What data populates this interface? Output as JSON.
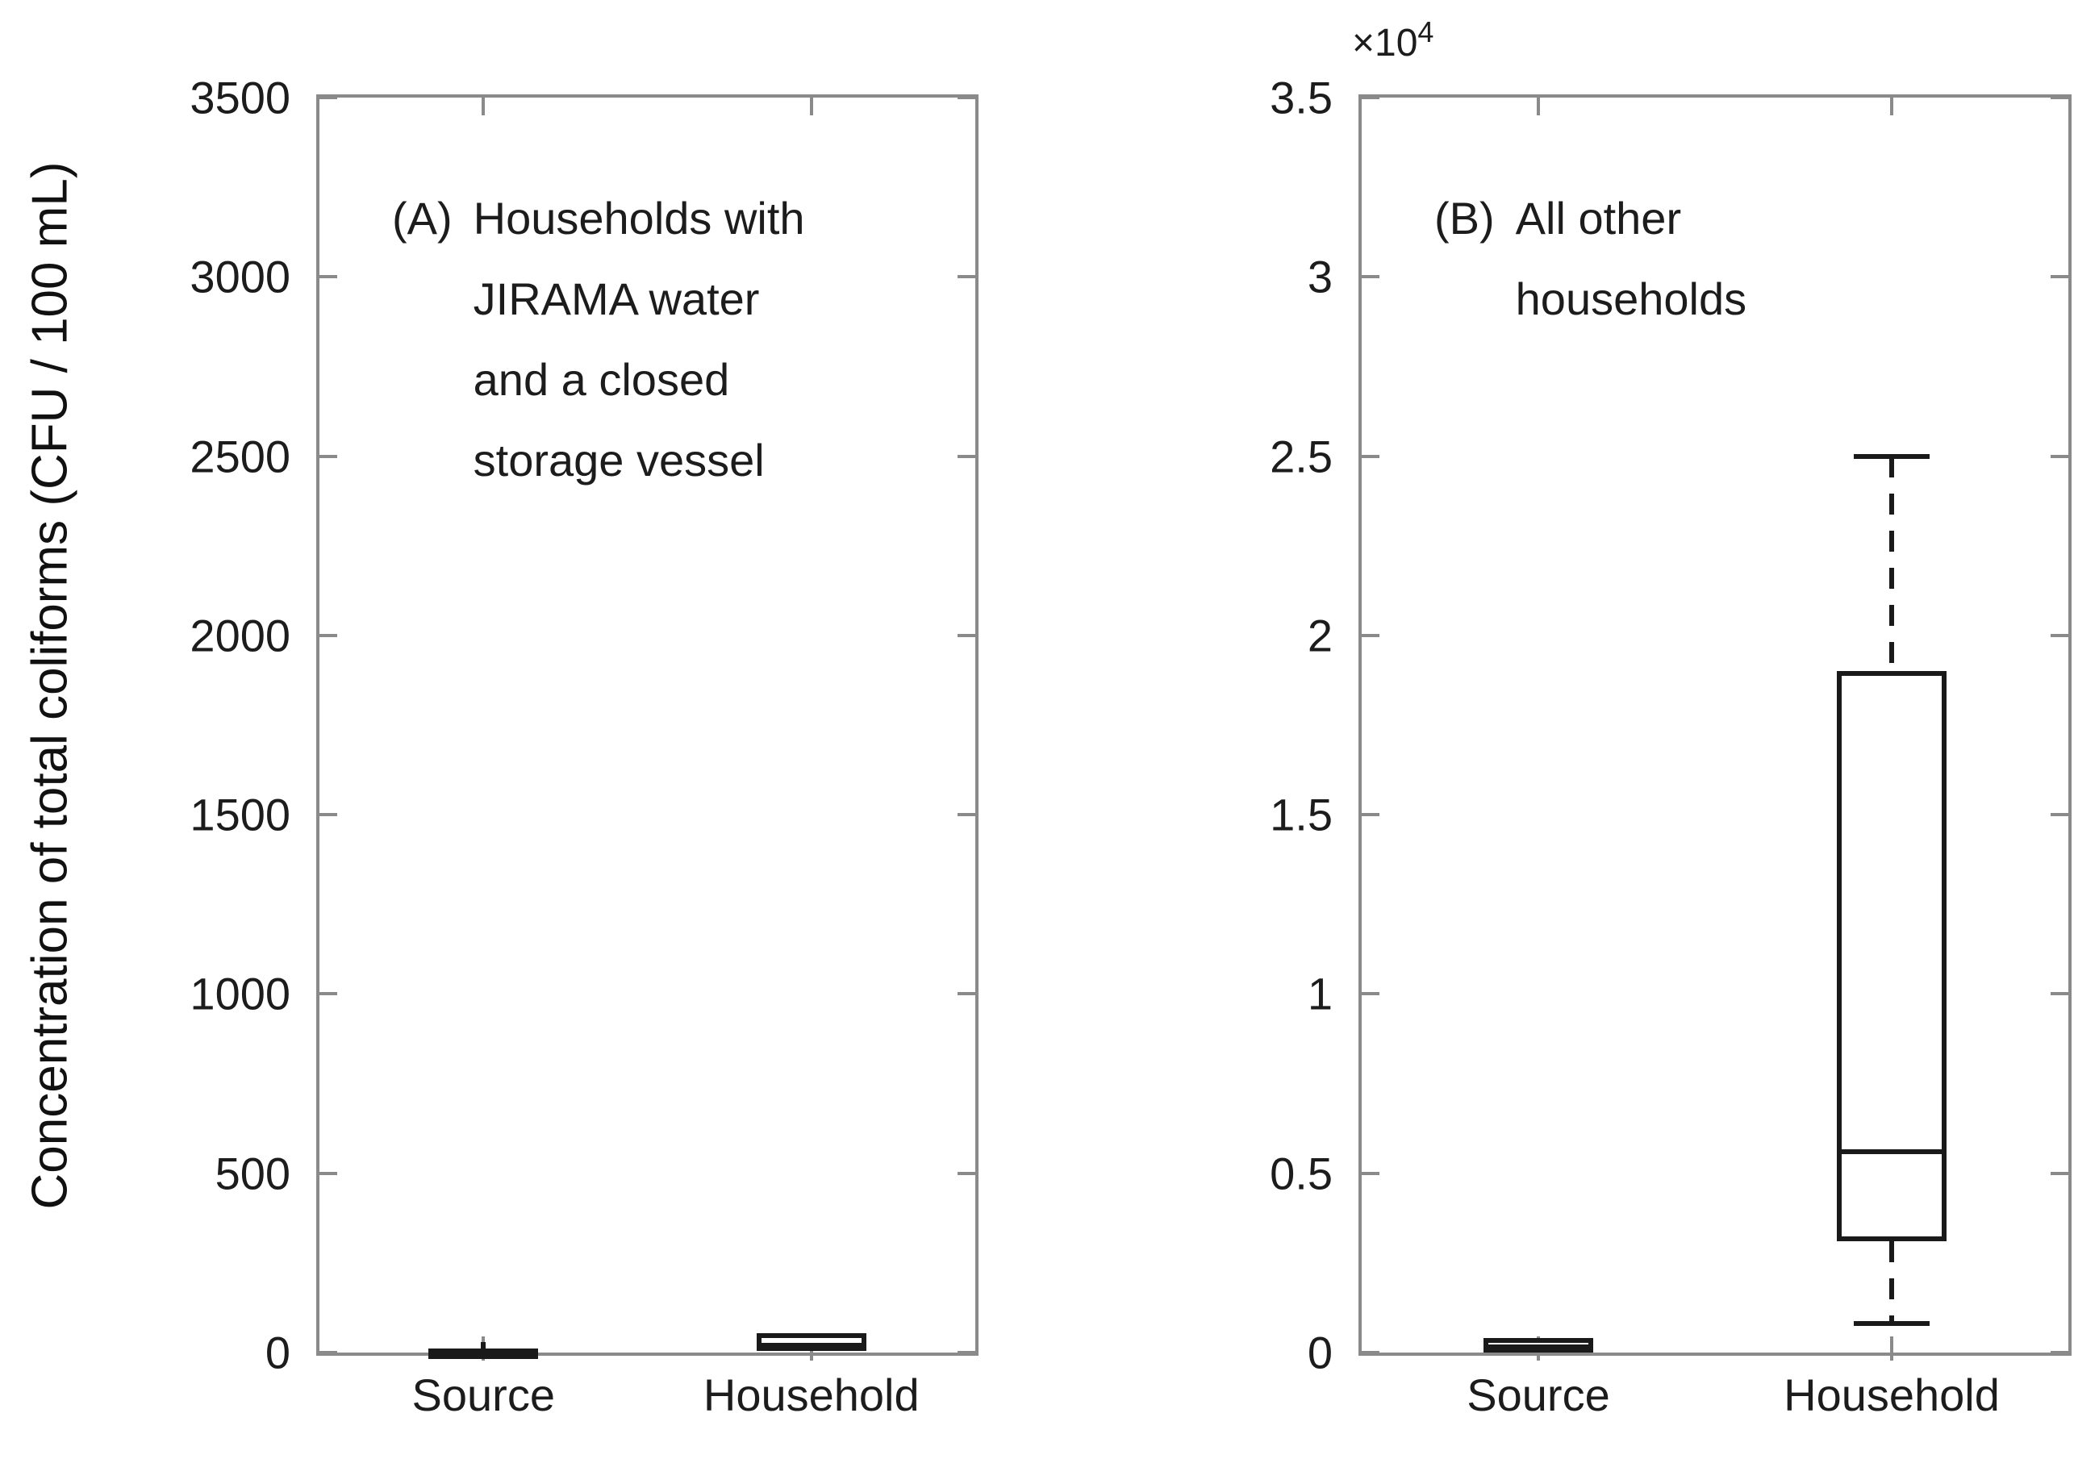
{
  "figure": {
    "background": "#ffffff",
    "ink_color": "#1a1a1a",
    "frame_color": "#8a8a8a"
  },
  "chart_data": {
    "type": "boxplot",
    "ylabel": "Concentration of total coliforms (CFU / 100 mL)",
    "grid": false,
    "panels": [
      {
        "id": "A",
        "title_prefix": "(A)",
        "title_text": "Households with\nJIRAMA water\nand a closed\nstorage vessel",
        "ylim": [
          0,
          3500
        ],
        "yticks": [
          0,
          500,
          1000,
          1500,
          2000,
          2500,
          3000,
          3500
        ],
        "ytick_labels": [
          "0",
          "500",
          "1000",
          "1500",
          "2000",
          "2500",
          "3000",
          "3500"
        ],
        "categories": [
          "Source",
          "Household"
        ],
        "boxes": [
          {
            "category": "Source",
            "whisker_low": 0,
            "q1": 0,
            "median": 4,
            "q3": 10,
            "whisker_high": 30,
            "caps": false
          },
          {
            "category": "Household",
            "whisker_low": 5,
            "q1": 5,
            "median": 20,
            "q3": 55,
            "whisker_high": 55,
            "caps": false
          }
        ]
      },
      {
        "id": "B",
        "title_prefix": "(B)",
        "title_text": "All other\nhouseholds",
        "exponent_multiplier": "×10",
        "exponent_power": "4",
        "ylim": [
          0,
          35000
        ],
        "yticks": [
          0,
          5000,
          10000,
          15000,
          20000,
          25000,
          30000,
          35000
        ],
        "ytick_labels": [
          "0",
          "0.5",
          "1",
          "1.5",
          "2",
          "2.5",
          "3",
          "3.5"
        ],
        "categories": [
          "Source",
          "Household"
        ],
        "boxes": [
          {
            "category": "Source",
            "whisker_low": 0,
            "q1": 0,
            "median": 150,
            "q3": 400,
            "whisker_high": 400,
            "caps": false
          },
          {
            "category": "Household",
            "whisker_low": 800,
            "q1": 3100,
            "median": 5600,
            "q3": 19000,
            "whisker_high": 25000,
            "caps": true
          }
        ]
      }
    ]
  }
}
